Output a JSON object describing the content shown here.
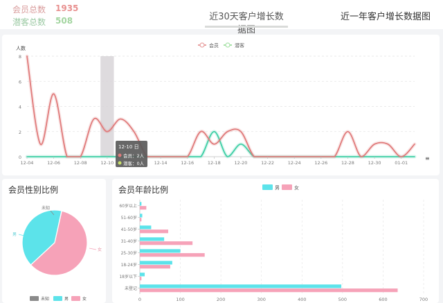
{
  "stats": {
    "member_label": "会员总数",
    "member_value": "1935",
    "prospect_label": "潜客总数",
    "prospect_value": "508"
  },
  "tabs": [
    {
      "label": "近30天客户增长数据图",
      "active": true
    },
    {
      "label": "近一年客户增长数据图",
      "active": false
    }
  ],
  "growth_chart": {
    "ylabel": "人数",
    "legend": {
      "member": "会员",
      "prospect": "潜客"
    },
    "colors": {
      "member": "#e07a7a",
      "prospect": "#3ecfa5"
    },
    "tooltip": {
      "title": "12-10 日",
      "member_line": "会员：2人",
      "prospect_line": "潜客：0人"
    },
    "menu_icon": "≡"
  },
  "gender": {
    "title": "会员性别比例",
    "labels": {
      "unknown": "未知",
      "male": "男",
      "female": "女"
    },
    "colors": {
      "unknown": "#8a8a8a",
      "male": "#5ce3ea",
      "female": "#f6a2b8"
    }
  },
  "age": {
    "title": "会员年龄比例",
    "legend": {
      "male": "男",
      "female": "女"
    }
  },
  "chart_data": [
    {
      "type": "line",
      "title": "",
      "ylabel": "人数",
      "ylim": [
        0,
        8
      ],
      "yticks": [
        0,
        2,
        4,
        6,
        8
      ],
      "x": [
        "12-04",
        "12-05",
        "12-06",
        "12-07",
        "12-08",
        "12-09",
        "12-10",
        "12-11",
        "12-12",
        "12-13",
        "12-14",
        "12-15",
        "12-16",
        "12-17",
        "12-18",
        "12-19",
        "12-20",
        "12-21",
        "12-22",
        "12-23",
        "12-24",
        "12-25",
        "12-26",
        "12-27",
        "12-28",
        "12-29",
        "12-30",
        "12-31",
        "01-01",
        "01-02"
      ],
      "xtick_labels": [
        "12-04",
        "12-06",
        "12-08",
        "12-10",
        "12-12",
        "12-14",
        "12-16",
        "12-18",
        "12-20",
        "12-22",
        "12-24",
        "12-26",
        "12-28",
        "12-30",
        "01-01"
      ],
      "series": [
        {
          "name": "会员",
          "values": [
            8,
            1,
            5,
            0,
            0,
            3,
            2,
            3,
            2,
            0,
            0,
            0,
            0,
            2,
            1,
            2,
            2,
            0,
            0,
            0,
            0,
            0,
            0,
            0,
            2,
            0,
            1,
            1,
            0,
            1
          ]
        },
        {
          "name": "潜客",
          "values": [
            0,
            0,
            0,
            0,
            0,
            0,
            0,
            0,
            0,
            0,
            0,
            0,
            0,
            0,
            2,
            0,
            1,
            0,
            0,
            0,
            0,
            0,
            0,
            0,
            0,
            0,
            0,
            0,
            0,
            0
          ]
        }
      ],
      "highlight_category": "12-10",
      "grid": true,
      "legend_position": "top-center"
    },
    {
      "type": "pie",
      "title": "会员性别比例",
      "categories": [
        "未知",
        "男",
        "女"
      ],
      "values": [
        2,
        780,
        1153
      ],
      "legend_position": "bottom"
    },
    {
      "type": "bar",
      "orientation": "horizontal",
      "title": "会员年龄比例",
      "categories": [
        "未登记",
        "18岁以下",
        "18-24岁",
        "25-30岁",
        "31-40岁",
        "41-50岁",
        "51-60岁",
        "60岁以上"
      ],
      "series": [
        {
          "name": "男",
          "values": [
            497,
            12,
            80,
            100,
            60,
            28,
            6,
            4
          ]
        },
        {
          "name": "女",
          "values": [
            636,
            4,
            75,
            160,
            130,
            70,
            4,
            16
          ]
        }
      ],
      "xlim": [
        0,
        700
      ],
      "xticks": [
        0,
        100,
        200,
        300,
        400,
        500,
        600,
        700
      ],
      "legend_position": "top-center",
      "grid": true
    }
  ]
}
